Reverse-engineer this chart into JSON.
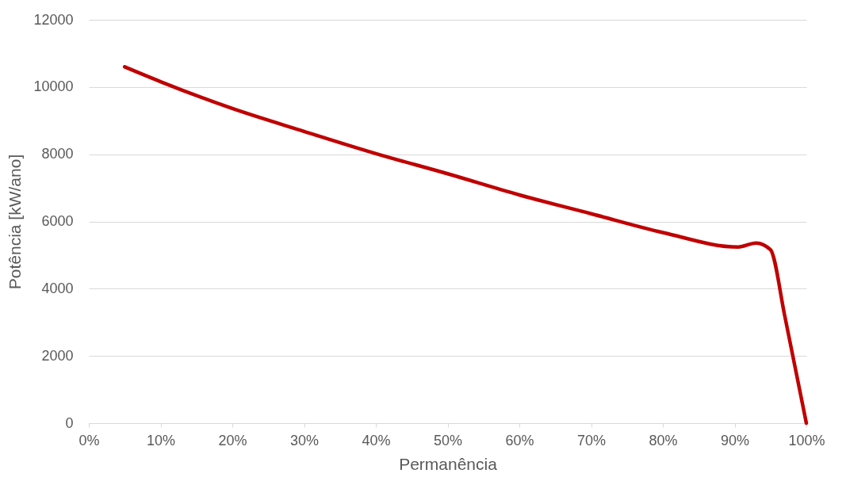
{
  "chart_data": {
    "type": "line",
    "xlabel": "Permanência",
    "ylabel": "Potência [kW/ano]",
    "x": [
      5,
      10,
      20,
      30,
      40,
      50,
      60,
      70,
      80,
      90.5,
      93,
      95,
      97,
      100
    ],
    "series": [
      {
        "color": "#c00000",
        "values": [
          10600,
          10160,
          9360,
          8680,
          8020,
          7420,
          6790,
          6230,
          5670,
          5240,
          5360,
          5160,
          3180,
          0
        ]
      }
    ],
    "xlim": [
      0,
      100
    ],
    "xticks": [
      {
        "value": 0,
        "label": "0%"
      },
      {
        "value": 10,
        "label": "10%"
      },
      {
        "value": 20,
        "label": "20%"
      },
      {
        "value": 30,
        "label": "30%"
      },
      {
        "value": 40,
        "label": "40%"
      },
      {
        "value": 50,
        "label": "50%"
      },
      {
        "value": 60,
        "label": "60%"
      },
      {
        "value": 70,
        "label": "70%"
      },
      {
        "value": 80,
        "label": "80%"
      },
      {
        "value": 90,
        "label": "90%"
      },
      {
        "value": 100,
        "label": "100%"
      }
    ],
    "ylim": [
      0,
      12000
    ],
    "yticks": [
      0,
      2000,
      4000,
      6000,
      8000,
      10000,
      12000
    ],
    "grid": "y",
    "marker": "none",
    "line_style": "solid"
  }
}
